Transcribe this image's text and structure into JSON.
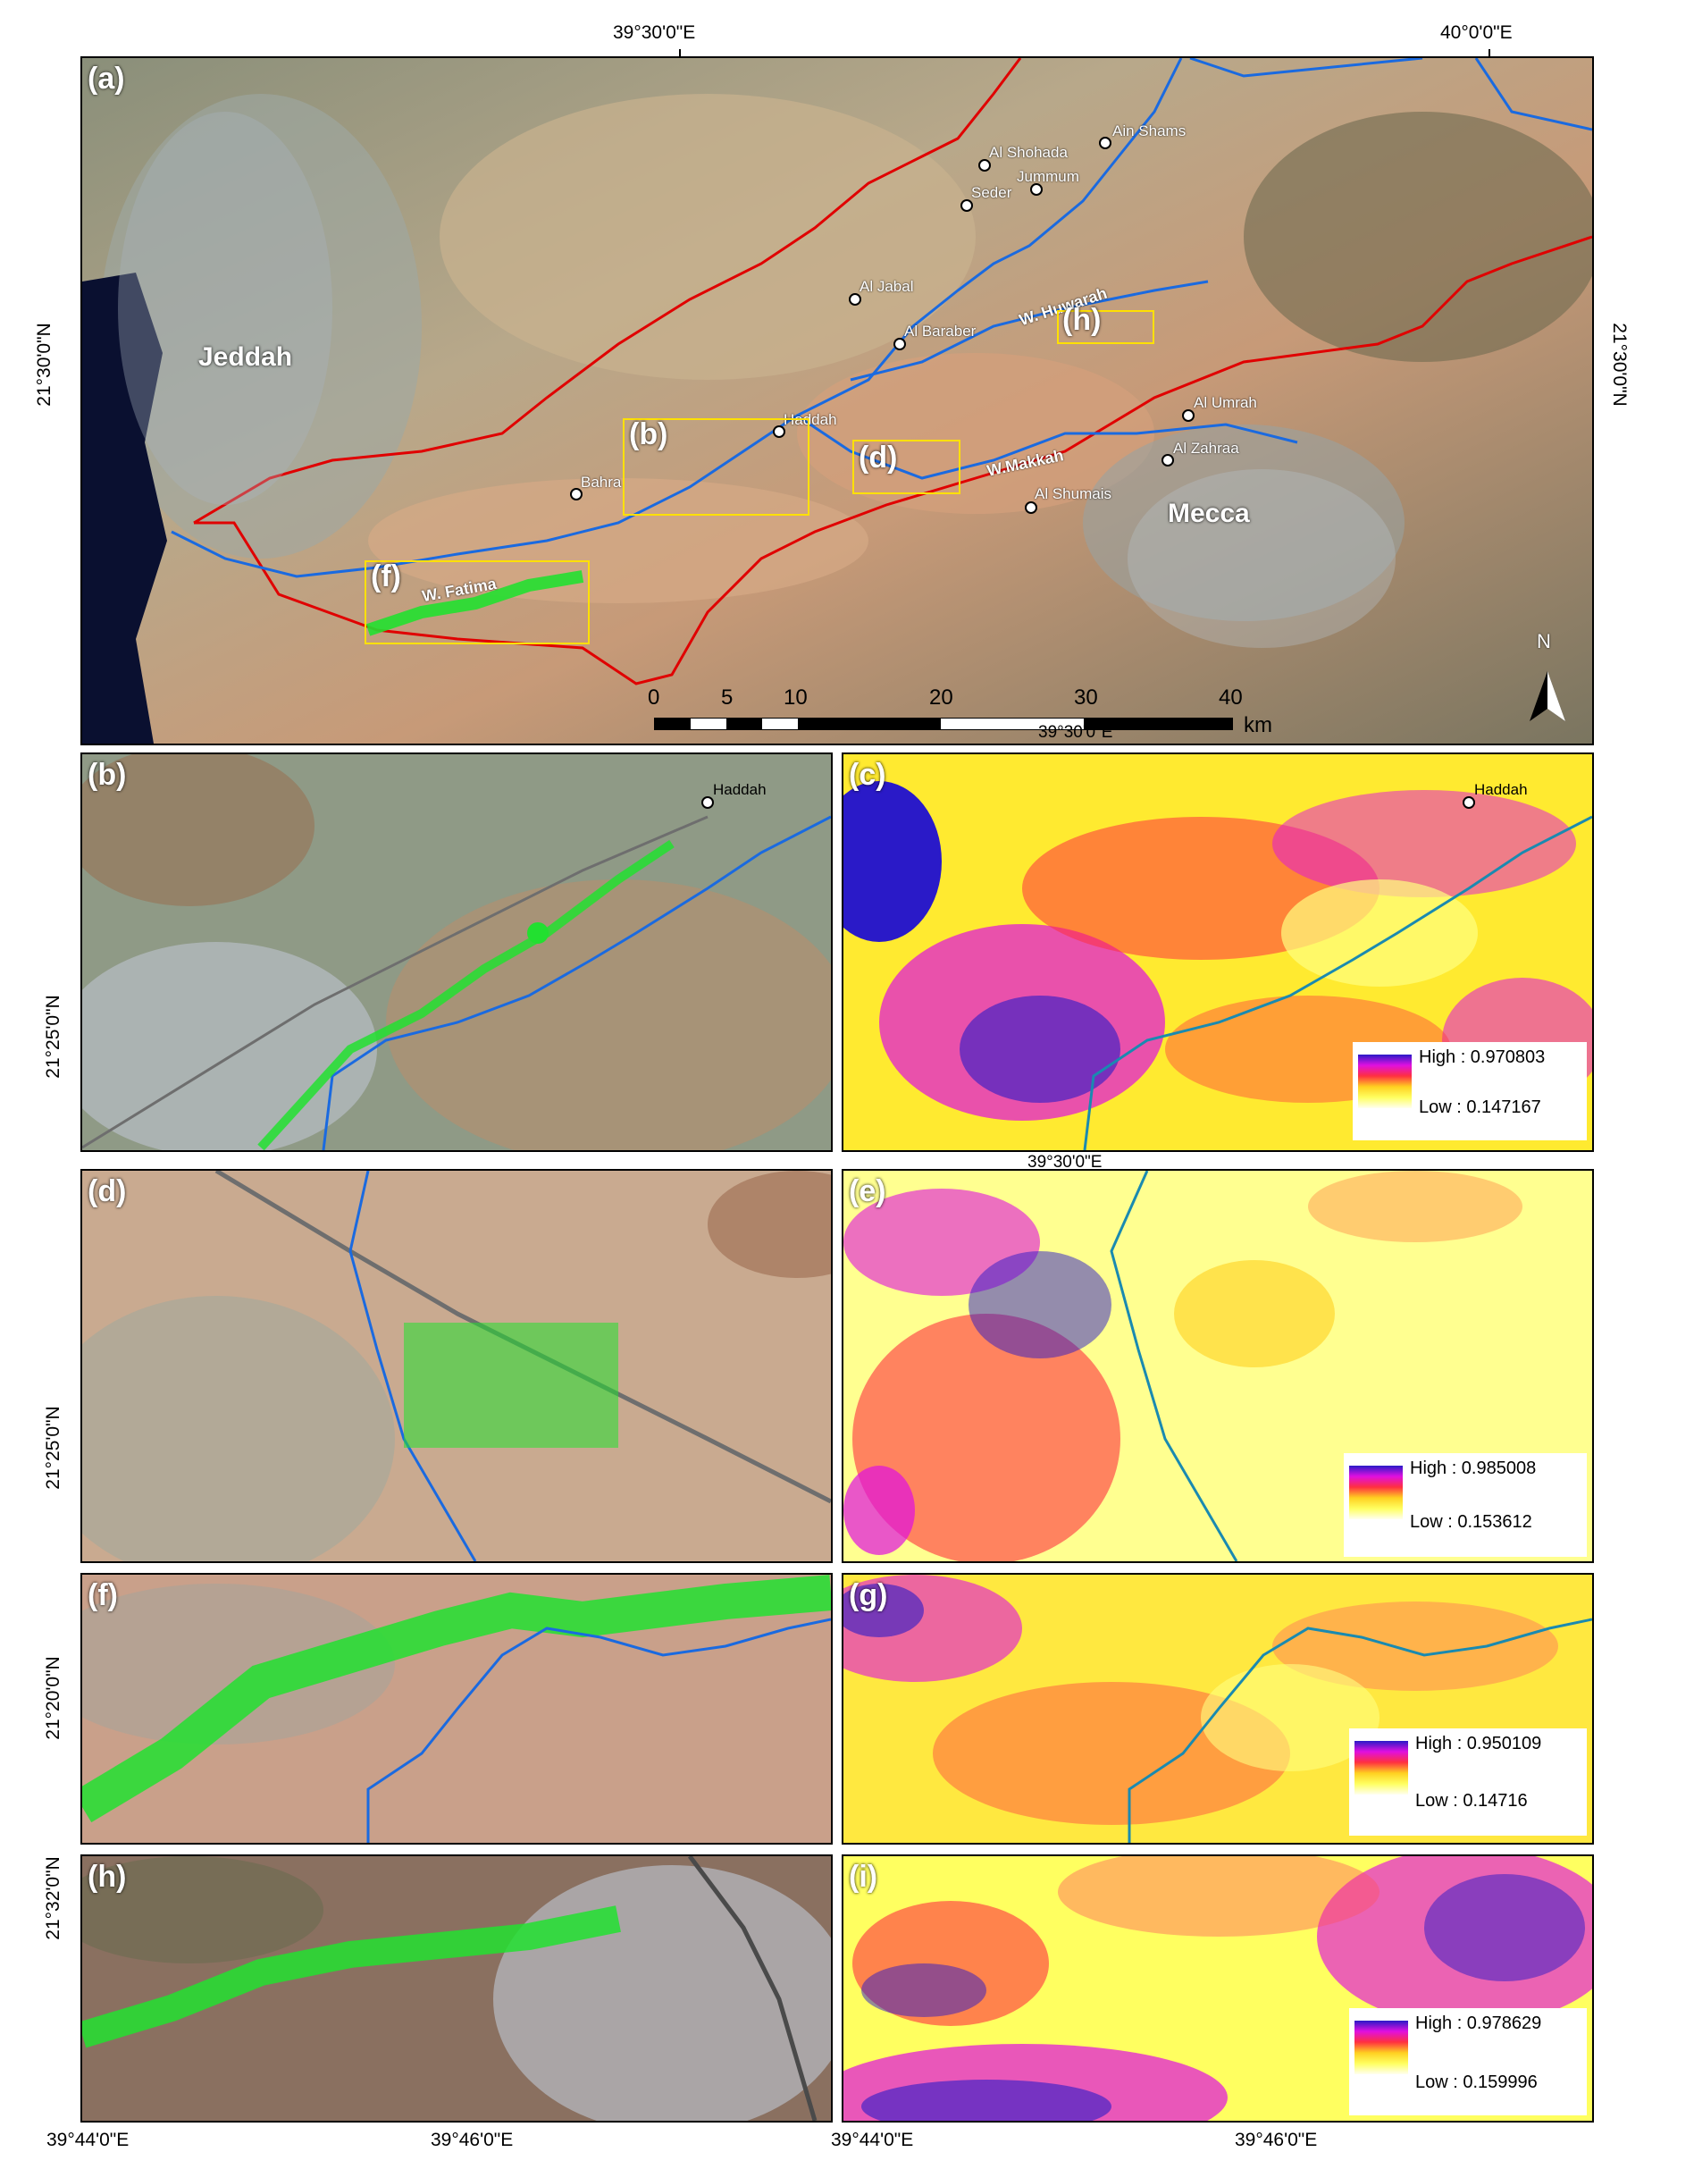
{
  "panels": {
    "a": "(a)",
    "b": "(b)",
    "c": "(c)",
    "d": "(d)",
    "e": "(e)",
    "f": "(f)",
    "g": "(g)",
    "h": "(h)",
    "i": "(i)"
  },
  "coords": {
    "top_lon_1": "39°30'0\"E",
    "top_lon_2": "40°0'0\"E",
    "a_lat": "21°30'0\"N",
    "a_bottom_lon": "39°30'0\"E",
    "c_bottom_lon": "39°30'0\"E",
    "b_lat": "21°25'0\"N",
    "d_lat": "21°25'0\"N",
    "f_lat": "21°20'0\"N",
    "h_lat": "21°32'0\"N",
    "bottom_lon_1": "39°44'0\"E",
    "bottom_lon_2": "39°46'0\"E",
    "bottom_lon_3": "39°44'0\"E",
    "bottom_lon_4": "39°46'0\"E"
  },
  "map_a": {
    "cities": {
      "jeddah": "Jeddah",
      "mecca": "Mecca"
    },
    "places": {
      "ain_shams": "Ain Shams",
      "al_shohada": "Al Shohada",
      "jummum": "Jummum",
      "seder": "Seder",
      "al_jabal": "Al Jabal",
      "al_baraber": "Al Baraber",
      "haddah": "Haddah",
      "bahra": "Bahra",
      "al_umrah": "Al Umrah",
      "al_zahraa": "Al Zahraa",
      "al_shumais": "Al Shumais"
    },
    "wadis": {
      "huwarah": "W. Huwarah",
      "makkah": "W.Makkah",
      "fatima": "W. Fatima"
    },
    "boxes": {
      "b": "(b)",
      "d": "(d)",
      "f": "(f)",
      "h": "(h)"
    },
    "north": "N",
    "scale": {
      "t0": "0",
      "t5": "5",
      "t10": "10",
      "t20": "20",
      "t30": "30",
      "t40": "40",
      "unit": "km"
    }
  },
  "map_b": {
    "haddah": "Haddah"
  },
  "map_c": {
    "haddah": "Haddah"
  },
  "legends": {
    "c": {
      "high": "High : 0.970803",
      "low": "Low : 0.147167"
    },
    "e": {
      "high": "High : 0.985008",
      "low": "Low : 0.153612"
    },
    "g": {
      "high": "High : 0.950109",
      "low": "Low : 0.14716"
    },
    "i": {
      "high": "High : 0.978629",
      "low": "Low : 0.159996"
    }
  },
  "colors": {
    "boundary": "#e00000",
    "wadi": "#1a6ae0",
    "study_box": "#ffe000",
    "vegetation": "#22e030",
    "index_high": "#2a1ac8",
    "index_low": "#ffff60"
  }
}
